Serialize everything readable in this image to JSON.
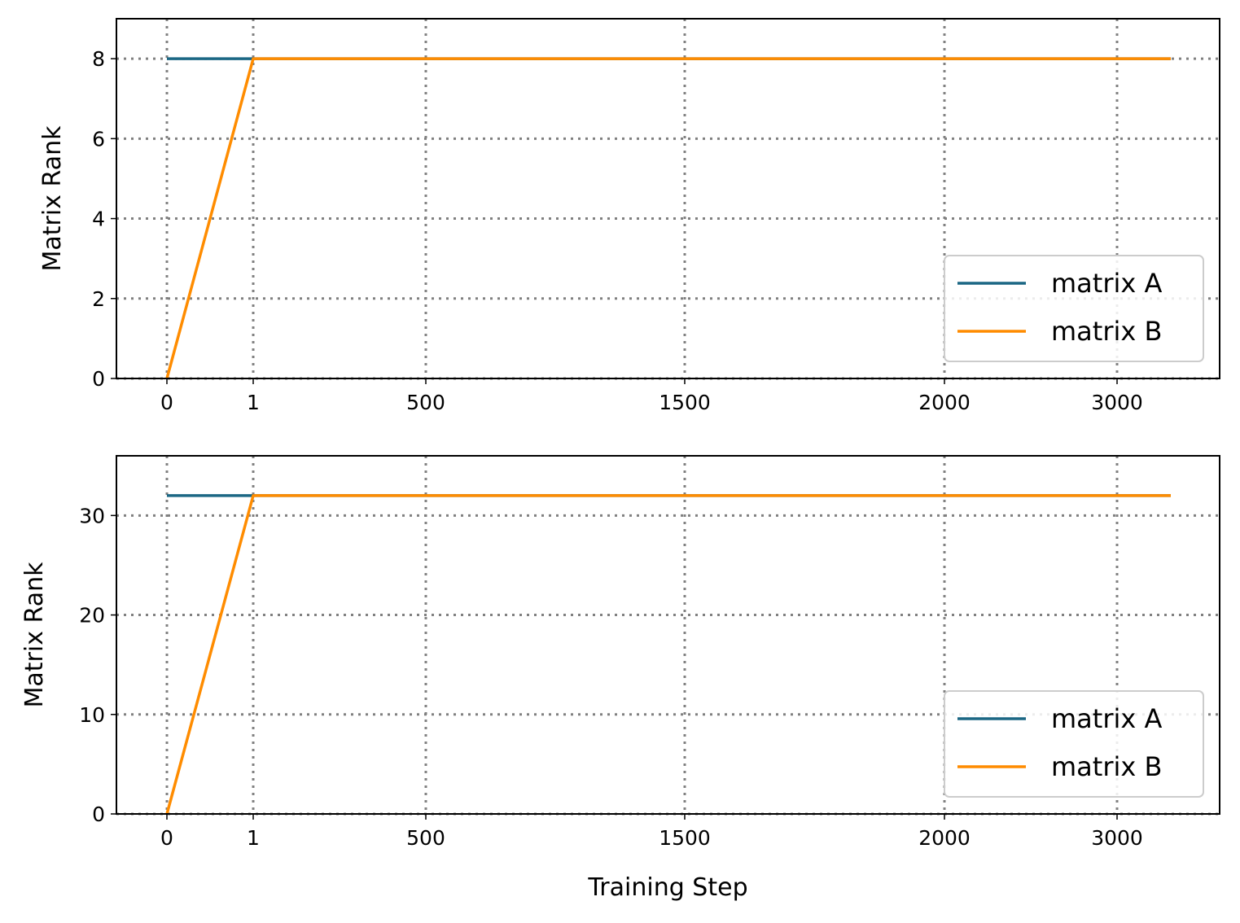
{
  "chart_data": [
    {
      "type": "line",
      "xlabel": "",
      "ylabel": "Matrix Rank",
      "x_tick_labels": [
        "0",
        "1",
        "500",
        "1500",
        "2000",
        "3000"
      ],
      "y_ticks": [
        "0",
        "2",
        "4",
        "6",
        "8"
      ],
      "ylim": [
        0,
        9
      ],
      "grid": true,
      "legend_position": "lower-right",
      "series": [
        {
          "name": "matrix A",
          "color": "#1b6784",
          "x": [
            "0",
            "1",
            "3200"
          ],
          "y": [
            8,
            8,
            8
          ]
        },
        {
          "name": "matrix B",
          "color": "#ff8c00",
          "x": [
            "0",
            "1",
            "3200"
          ],
          "y": [
            0,
            8,
            8
          ]
        }
      ]
    },
    {
      "type": "line",
      "xlabel": "Training Step",
      "ylabel": "Matrix Rank",
      "x_tick_labels": [
        "0",
        "1",
        "500",
        "1500",
        "2000",
        "3000"
      ],
      "y_ticks": [
        "0",
        "10",
        "20",
        "30"
      ],
      "ylim": [
        0,
        36
      ],
      "grid": true,
      "legend_position": "lower-right",
      "series": [
        {
          "name": "matrix A",
          "color": "#1b6784",
          "x": [
            "0",
            "1",
            "3200"
          ],
          "y": [
            32,
            32,
            32
          ]
        },
        {
          "name": "matrix B",
          "color": "#ff8c00",
          "x": [
            "0",
            "1",
            "3200"
          ],
          "y": [
            0,
            32,
            32
          ]
        }
      ]
    }
  ]
}
